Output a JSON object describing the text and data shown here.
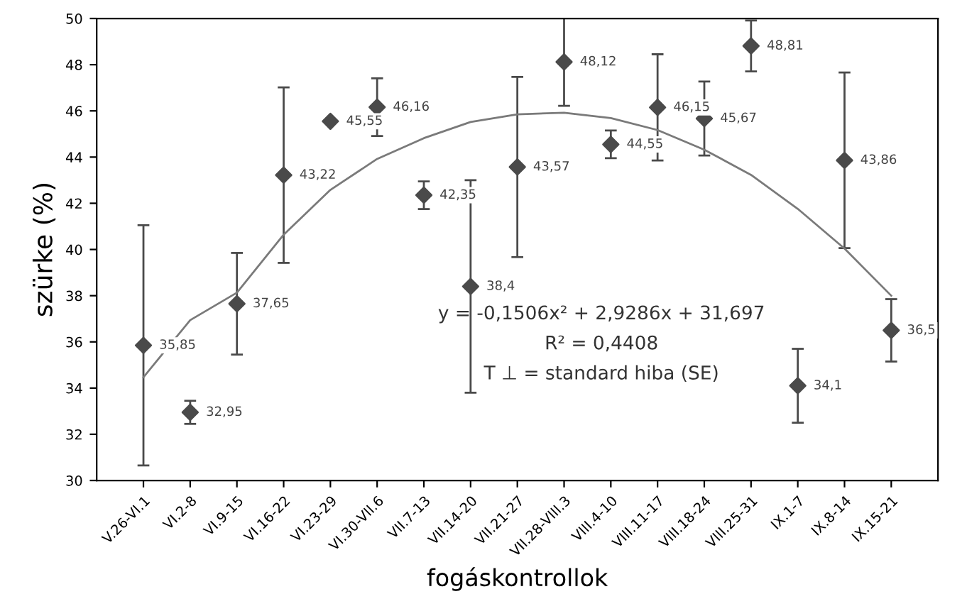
{
  "chart_data": {
    "type": "scatter",
    "xlabel": "fogáskontrollok",
    "ylabel": "szürke (%)",
    "categories": [
      "V.26-VI.1",
      "VI.2-8",
      "VI.9-15",
      "VI.16-22",
      "VI.23-29",
      "VI.30-VII.6",
      "VII.7-13",
      "VII.14-20",
      "VII.21-27",
      "VII.28-VIII.3",
      "VIII.4-10",
      "VIII.11-17",
      "VIII.18-24",
      "VIII.25-31",
      "IX.1-7",
      "IX.8-14",
      "IX.15-21"
    ],
    "ylim": [
      30,
      50
    ],
    "yticks": [
      30,
      32,
      34,
      36,
      38,
      40,
      42,
      44,
      46,
      48,
      50
    ],
    "grid": false,
    "legend": false,
    "series": [
      {
        "color": "#4a4a4a",
        "marker": "diamond",
        "values": [
          35.85,
          32.95,
          37.65,
          43.22,
          45.55,
          46.16,
          42.35,
          38.4,
          43.57,
          48.12,
          44.55,
          46.15,
          45.67,
          48.81,
          34.1,
          43.86,
          36.5
        ],
        "errors": [
          5.2,
          0.5,
          2.2,
          3.8,
          null,
          1.25,
          0.6,
          4.6,
          3.9,
          1.9,
          0.6,
          2.3,
          1.6,
          1.1,
          1.6,
          3.8,
          1.35
        ],
        "value_labels": [
          "35,85",
          "32,95",
          "37,65",
          "43,22",
          "45,55",
          "46,16",
          "42,35",
          "38,4",
          "43,57",
          "48,12",
          "44,55",
          "46,15",
          "45,67",
          "48,81",
          "34,1",
          "43,86",
          "36,5"
        ]
      },
      {
        "type": "line",
        "color": "#7a7a7a",
        "marker": "none",
        "line_style": "solid",
        "values": [
          34.47,
          36.94,
          38.13,
          40.64,
          42.58,
          43.92,
          44.82,
          45.52,
          45.85,
          45.92,
          45.69,
          45.17,
          44.32,
          43.23,
          41.76,
          40.04,
          38.0
        ]
      }
    ],
    "annotations": [
      "y = -0,1506x² + 2,9286x + 31,697",
      "R² = 0,4408",
      "T ⊥ = standard hiba (SE)"
    ]
  }
}
